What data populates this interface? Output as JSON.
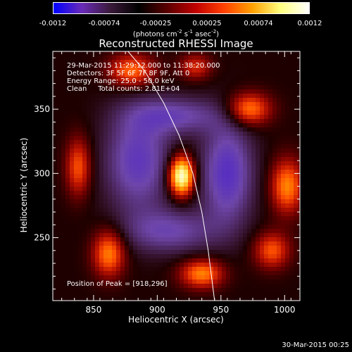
{
  "colorbar": {
    "ticks": [
      "-0.0012",
      "-0.00074",
      "-0.00025",
      "0.00025",
      "0.00074",
      "0.0012"
    ],
    "units_main": "(photons cm",
    "units_sup1": "-2",
    "units_mid": " s",
    "units_sup2": "-1",
    "units_end": " asec",
    "units_sup3": "-2",
    "units_close": ")",
    "colors": [
      "#0000ff",
      "#6a2bb8",
      "#3a1a3a",
      "#000000",
      "#5a0000",
      "#c00000",
      "#ff4000",
      "#ffa000",
      "#ffff80",
      "#ffffff"
    ]
  },
  "annotation": {
    "line1": "29-Mar-2015 11:29:12.000 to 11:38:20.000",
    "line2": "Detectors: 3F 5F 6F 7F 8F 9F, Att 0",
    "line3": "Energy Range: 25.0 - 50.0 keV",
    "line4": "Clean     Total counts: 2.81E+04",
    "peak": "Position of Peak = [918,296]"
  },
  "footer": "30-Mar-2015 00:25",
  "chart_data": {
    "type": "heatmap",
    "title": "Reconstructed RHESSI Image",
    "xlabel": "Heliocentric X (arcsec)",
    "ylabel": "Heliocentric Y (arcsec)",
    "xlim": [
      818,
      1012
    ],
    "ylim": [
      201,
      395
    ],
    "xticks": [
      850,
      900,
      950,
      1000
    ],
    "yticks": [
      250,
      300,
      350
    ],
    "colorbar_range": [
      -0.0012,
      0.0012
    ],
    "peak_position": [
      918,
      296
    ],
    "limb_curve": [
      [
        877,
        395
      ],
      [
        890,
        380
      ],
      [
        905,
        355
      ],
      [
        917,
        330
      ],
      [
        928,
        300
      ],
      [
        935,
        270
      ],
      [
        940,
        240
      ],
      [
        945,
        201
      ]
    ],
    "sources": [
      {
        "x": 919,
        "y": 298,
        "sx": 7,
        "sy": 11,
        "amp": 1.0
      },
      {
        "x": 972,
        "y": 350,
        "sx": 12,
        "sy": 9,
        "amp": 0.55
      },
      {
        "x": 1002,
        "y": 290,
        "sx": 9,
        "sy": 15,
        "amp": 0.55
      },
      {
        "x": 990,
        "y": 240,
        "sx": 10,
        "sy": 10,
        "amp": 0.45
      },
      {
        "x": 935,
        "y": 222,
        "sx": 12,
        "sy": 8,
        "amp": 0.55
      },
      {
        "x": 862,
        "y": 238,
        "sx": 9,
        "sy": 13,
        "amp": 0.55
      },
      {
        "x": 838,
        "y": 305,
        "sx": 7,
        "sy": 16,
        "amp": 0.45
      },
      {
        "x": 880,
        "y": 380,
        "sx": 13,
        "sy": 9,
        "amp": 0.5
      },
      {
        "x": 930,
        "y": 383,
        "sx": 9,
        "sy": 7,
        "amp": 0.35
      },
      {
        "x": 885,
        "y": 310,
        "sx": 18,
        "sy": 28,
        "amp": -0.45
      },
      {
        "x": 955,
        "y": 300,
        "sx": 14,
        "sy": 28,
        "amp": -0.5
      },
      {
        "x": 915,
        "y": 345,
        "sx": 25,
        "sy": 10,
        "amp": -0.35
      },
      {
        "x": 910,
        "y": 255,
        "sx": 25,
        "sy": 12,
        "amp": -0.35
      }
    ]
  }
}
